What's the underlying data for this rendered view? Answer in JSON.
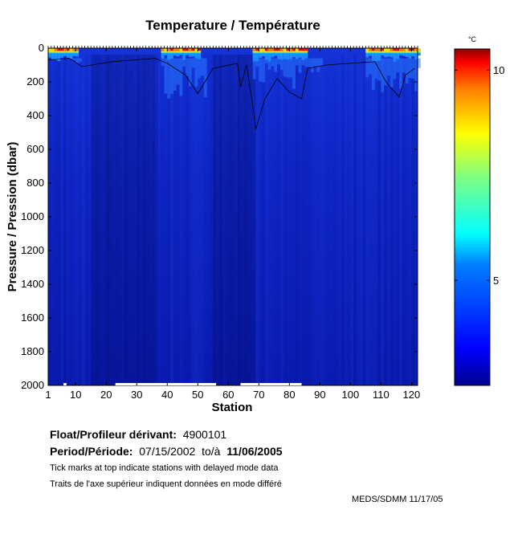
{
  "title": "Temperature / Température",
  "footer": {
    "float_label": "Float/Profileur dérivant:",
    "float_id": "4900101",
    "period_label": "Period/Période:",
    "period_start": "07/15/2002",
    "period_sep": "to/à",
    "period_end": "11/06/2005",
    "note_en": "Tick marks at top indicate stations with delayed mode data",
    "note_fr": "Traits de l'axe supérieur indiquent données en mode différé",
    "credit": "MEDS/SDMM  11/17/05"
  },
  "colors": {
    "background": "#ffffff",
    "deep_water": "#0b1fb8",
    "colormap": [
      "#00008f",
      "#0000ff",
      "#007fff",
      "#00ffff",
      "#7fff7f",
      "#ffff00",
      "#ff7f00",
      "#ff0000",
      "#7f0000"
    ]
  },
  "chart_data": {
    "type": "heatmap",
    "title": "Temperature / Température",
    "xlabel": "Station",
    "ylabel": "Pressure / Pression (dbar)",
    "xlim": [
      1,
      122
    ],
    "ylim": [
      2000,
      0
    ],
    "y_inverted": true,
    "xticks": [
      1,
      10,
      20,
      30,
      40,
      50,
      60,
      70,
      80,
      90,
      100,
      110,
      120
    ],
    "yticks": [
      0,
      200,
      400,
      600,
      800,
      1000,
      1200,
      1400,
      1600,
      1800,
      2000
    ],
    "colorbar": {
      "unit": "°C",
      "range": [
        2.5,
        10.5
      ],
      "ticks": [
        5,
        10
      ],
      "colormap": "jet"
    },
    "contour_levels_c": [
      4,
      5,
      6,
      7,
      8,
      9,
      10
    ],
    "description_values": {
      "deep_temperature_c": 3.0,
      "surface_temperature_range_c": [
        4.5,
        10.5
      ],
      "warm_surface_stations": [
        [
          1,
          10
        ],
        [
          38,
          50
        ],
        [
          68,
          85
        ],
        [
          105,
          122
        ]
      ],
      "cold_column_stations": [
        [
          15,
          35
        ],
        [
          55,
          68
        ]
      ],
      "thermocline_depth_dbar": [
        100,
        480
      ]
    },
    "delayed_mode_stations_marked": true,
    "grid": false
  }
}
